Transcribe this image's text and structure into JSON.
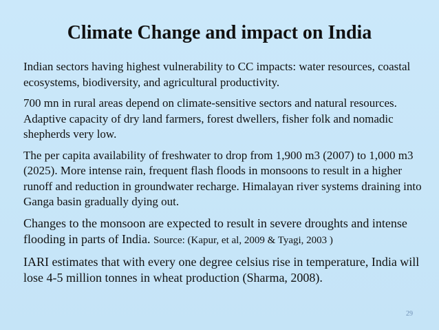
{
  "slide": {
    "title": "Climate Change and impact on India",
    "paragraphs": [
      "Indian sectors having highest vulnerability to CC impacts: water resources, coastal ecosystems, biodiversity, and agricultural productivity.",
      "700 mn in rural areas depend on climate-sensitive sectors and natural resources. Adaptive capacity of dry land farmers, forest dwellers, fisher folk and nomadic shepherds very low.",
      "The per capita availability of freshwater to drop from 1,900 m3 (2007) to 1,000 m3 (2025). More intense rain, frequent flash floods in monsoons to result in a higher runoff and reduction in groundwater recharge. Himalayan river systems draining into Ganga basin gradually dying out.",
      "Changes to the monsoon are expected to result in severe droughts and intense flooding in parts of India.",
      "IARI estimates that with every one degree celsius rise in temperature, India will lose 4-5 million tonnes in wheat production (Sharma, 2008)."
    ],
    "source": "Source: (Kapur, et al, 2009 & Tyagi, 2003 )",
    "page_number": "29"
  }
}
